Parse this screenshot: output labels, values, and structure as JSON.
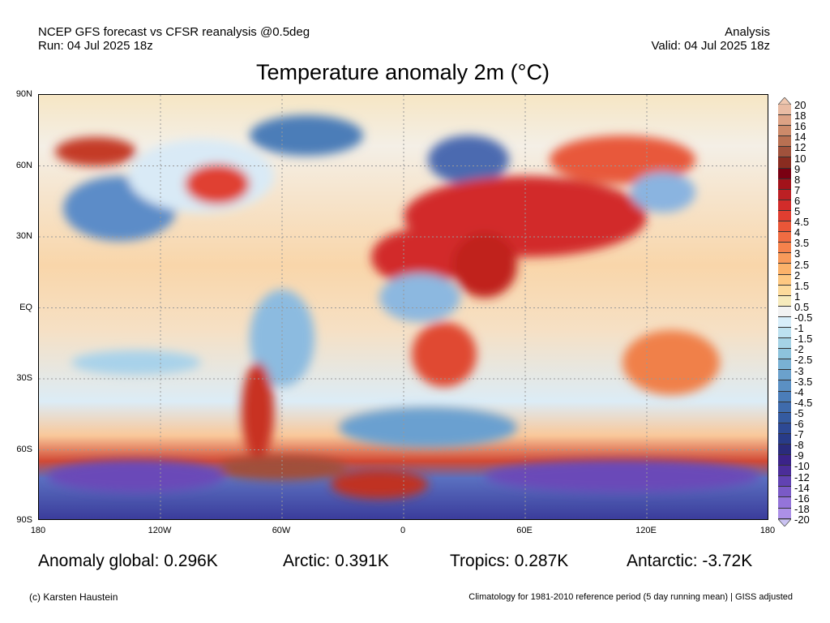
{
  "header": {
    "left_line1": "NCEP GFS forecast vs CFSR reanalysis @0.5deg",
    "left_line2": "Run: 04 Jul 2025 18z",
    "right_line1": "Analysis",
    "right_line2": "Valid: 04 Jul 2025 18z",
    "title": "Temperature anomaly 2m (°C)"
  },
  "axes": {
    "lat_labels": [
      "90N",
      "60N",
      "30N",
      "EQ",
      "30S",
      "60S",
      "90S"
    ],
    "lon_labels": [
      "180",
      "120W",
      "60W",
      "0",
      "60E",
      "120E",
      "180"
    ]
  },
  "colorbar": {
    "labels": [
      "20",
      "18",
      "16",
      "14",
      "12",
      "10",
      "9",
      "8",
      "7",
      "6",
      "5",
      "4.5",
      "4",
      "3.5",
      "3",
      "2.5",
      "2",
      "1.5",
      "1",
      "0.5",
      "-0.5",
      "-1",
      "-1.5",
      "-2",
      "-2.5",
      "-3",
      "-3.5",
      "-4",
      "-4.5",
      "-5",
      "-6",
      "-7",
      "-8",
      "-9",
      "-10",
      "-12",
      "-14",
      "-16",
      "-18",
      "-20"
    ],
    "colors": [
      "#e9bca4",
      "#dca285",
      "#cc8a6a",
      "#b87052",
      "#a0523c",
      "#8a2c20",
      "#7a0012",
      "#a2121a",
      "#bc2024",
      "#d22c2a",
      "#e03e30",
      "#ea5638",
      "#f06c42",
      "#f5824c",
      "#f89a5a",
      "#fbb26a",
      "#fdc882",
      "#fcda9c",
      "#f6eabc",
      "#f2f2f2",
      "#d8eefa",
      "#bde1f0",
      "#a5d3e6",
      "#8dc3dc",
      "#79b1d4",
      "#6ba1cc",
      "#5b90c3",
      "#4b7db8",
      "#3f6bac",
      "#355ba0",
      "#2d4994",
      "#283b88",
      "#2a2b7c",
      "#3b2389",
      "#4b2d99",
      "#6142b2",
      "#7a5ac6",
      "#9474d9",
      "#ac90e7"
    ],
    "top_color": "#f0c8b0",
    "bottom_color": "#cbc3f2"
  },
  "stats": {
    "global": "Anomaly global: 0.296K",
    "arctic": "Arctic: 0.391K",
    "tropics": "Tropics: 0.287K",
    "antarctic": "Antarctic: -3.72K"
  },
  "footer": {
    "credit": "(c) Karsten Haustein",
    "note": "Climatology for 1981-2010 reference period (5 day running mean) | GISS adjusted"
  }
}
